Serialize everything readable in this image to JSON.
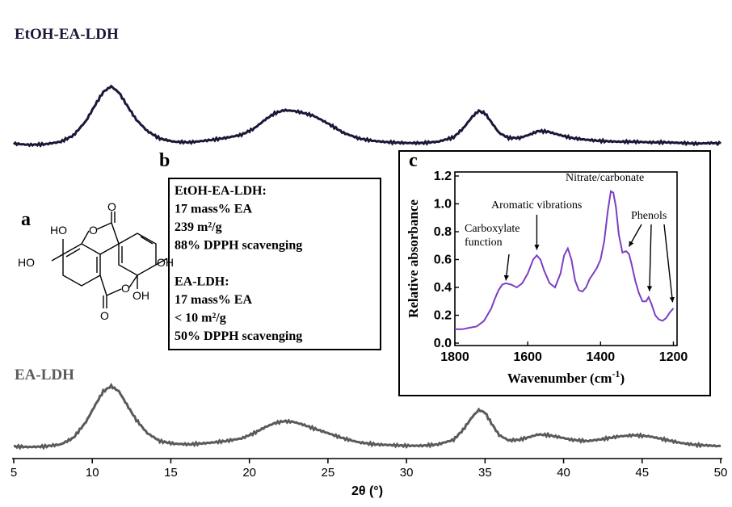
{
  "panel_labels": {
    "a": "a",
    "b": "b",
    "c": "c"
  },
  "chart_data": [
    {
      "type": "line",
      "xlabel": "2θ (°)",
      "ylabel": "",
      "xlim": [
        5,
        50
      ],
      "xticks": [
        5,
        10,
        15,
        20,
        25,
        30,
        35,
        40,
        45,
        50
      ],
      "yticks": [],
      "grid": false,
      "series": [
        {
          "name": "EtOH-EA-LDH",
          "color": "#1b1738",
          "x": [
            5,
            6,
            7,
            8,
            8.8,
            9.6,
            10.2,
            10.7,
            11.2,
            11.7,
            12.2,
            12.8,
            13.5,
            14.3,
            15.2,
            16.2,
            17.3,
            18.5,
            19.5,
            20.3,
            21,
            21.6,
            22.2,
            22.8,
            23.4,
            24.1,
            25,
            26,
            27,
            28,
            29,
            30,
            31,
            32,
            33,
            33.6,
            34.2,
            34.6,
            35,
            35.4,
            35.9,
            36.5,
            37.2,
            37.8,
            38.4,
            39,
            39.7,
            40.5,
            41.5,
            42.5,
            43.5,
            44.5,
            45.5,
            46.5,
            47.5,
            48.5,
            49.5,
            50
          ],
          "y": [
            0.04,
            0.02,
            0.03,
            0.07,
            0.17,
            0.4,
            0.66,
            0.86,
            0.95,
            0.85,
            0.65,
            0.42,
            0.24,
            0.12,
            0.07,
            0.06,
            0.09,
            0.13,
            0.18,
            0.28,
            0.42,
            0.52,
            0.57,
            0.56,
            0.53,
            0.48,
            0.36,
            0.21,
            0.12,
            0.08,
            0.06,
            0.05,
            0.05,
            0.07,
            0.14,
            0.28,
            0.47,
            0.56,
            0.52,
            0.38,
            0.21,
            0.13,
            0.13,
            0.18,
            0.24,
            0.23,
            0.18,
            0.13,
            0.1,
            0.08,
            0.07,
            0.07,
            0.06,
            0.06,
            0.05,
            0.04,
            0.05,
            0.04
          ]
        },
        {
          "name": "EA-LDH",
          "color": "#5a5a5a",
          "x": [
            5,
            6,
            7,
            8,
            8.8,
            9.6,
            10.2,
            10.7,
            11.2,
            11.7,
            12.2,
            12.8,
            13.5,
            14.3,
            15.2,
            16.2,
            17.3,
            18.5,
            19.5,
            20.3,
            21,
            21.6,
            22.2,
            22.8,
            23.4,
            24.1,
            25,
            26,
            27,
            28,
            29,
            30,
            31,
            32,
            33,
            33.6,
            34.2,
            34.6,
            35,
            35.4,
            35.9,
            36.5,
            37.2,
            37.8,
            38.4,
            39,
            39.7,
            40.5,
            41.5,
            42.5,
            43.5,
            44.5,
            45.5,
            46.5,
            47.5,
            48.5,
            49.5,
            50
          ],
          "y": [
            0.05,
            0.04,
            0.05,
            0.08,
            0.18,
            0.42,
            0.68,
            0.88,
            0.96,
            0.88,
            0.68,
            0.45,
            0.25,
            0.13,
            0.09,
            0.08,
            0.1,
            0.13,
            0.17,
            0.25,
            0.34,
            0.4,
            0.43,
            0.42,
            0.38,
            0.32,
            0.25,
            0.17,
            0.11,
            0.08,
            0.07,
            0.06,
            0.06,
            0.08,
            0.15,
            0.3,
            0.5,
            0.6,
            0.56,
            0.4,
            0.22,
            0.14,
            0.15,
            0.19,
            0.23,
            0.22,
            0.19,
            0.15,
            0.13,
            0.16,
            0.2,
            0.22,
            0.2,
            0.15,
            0.1,
            0.07,
            0.06,
            0.05
          ]
        }
      ]
    },
    {
      "type": "line",
      "xlabel": "Wavenumber (cm",
      "xlabel_superscript": "-1",
      "xlabel_suffix": ")",
      "ylabel": "Relative absorbance",
      "xlim": [
        1800,
        1190
      ],
      "ylim": [
        0,
        1.2
      ],
      "xticks": [
        1800,
        1600,
        1400,
        1200
      ],
      "yticks": [
        0.0,
        0.2,
        0.4,
        0.6,
        0.8,
        1.0,
        1.2
      ],
      "ytick_labels": [
        "0.0",
        "0.2",
        "0.4",
        "0.6",
        "0.8",
        "1.0",
        "1.2"
      ],
      "grid": false,
      "series": [
        {
          "name": "",
          "color": "#7b3fc4",
          "x": [
            1800,
            1780,
            1760,
            1740,
            1720,
            1700,
            1690,
            1680,
            1670,
            1660,
            1645,
            1630,
            1615,
            1600,
            1585,
            1575,
            1565,
            1555,
            1540,
            1525,
            1510,
            1500,
            1490,
            1480,
            1470,
            1460,
            1450,
            1440,
            1430,
            1420,
            1410,
            1400,
            1390,
            1380,
            1372,
            1365,
            1358,
            1350,
            1340,
            1330,
            1322,
            1315,
            1305,
            1295,
            1285,
            1275,
            1268,
            1260,
            1250,
            1240,
            1230,
            1220,
            1210,
            1200
          ],
          "y": [
            0.1,
            0.1,
            0.11,
            0.12,
            0.16,
            0.25,
            0.32,
            0.38,
            0.42,
            0.43,
            0.42,
            0.4,
            0.43,
            0.5,
            0.6,
            0.63,
            0.6,
            0.52,
            0.43,
            0.4,
            0.5,
            0.63,
            0.68,
            0.6,
            0.45,
            0.38,
            0.37,
            0.4,
            0.46,
            0.5,
            0.54,
            0.6,
            0.73,
            0.95,
            1.09,
            1.08,
            0.98,
            0.78,
            0.65,
            0.66,
            0.64,
            0.57,
            0.45,
            0.36,
            0.3,
            0.3,
            0.33,
            0.28,
            0.2,
            0.17,
            0.16,
            0.18,
            0.22,
            0.25
          ]
        }
      ],
      "annotations": [
        {
          "id": "carboxylate",
          "lines": [
            "Carboxylate",
            "function"
          ],
          "x": 1660,
          "y": 0.45
        },
        {
          "id": "aromatic",
          "lines": [
            "Aromatic vibrations"
          ],
          "x": 1575,
          "y": 0.67
        },
        {
          "id": "nitrate",
          "lines": [
            "Nitrate/carbonate"
          ],
          "x": 1365,
          "y": 1.12
        },
        {
          "id": "phenols",
          "lines": [
            "Phenols"
          ],
          "x": [
            1322,
            1268,
            1200
          ],
          "y": [
            0.67,
            0.35,
            0.27
          ]
        }
      ]
    }
  ],
  "infobox": {
    "lines": [
      "EtOH-EA-LDH:",
      "17 mass% EA",
      "239 m²/g",
      "88% DPPH scavenging",
      "",
      "EA-LDH:",
      "17 mass% EA",
      "< 10 m²/g",
      "50% DPPH scavenging"
    ]
  },
  "molecule": {
    "labels": [
      "HO",
      "HO",
      "OH",
      "OH",
      "O",
      "O",
      "O",
      "O"
    ]
  },
  "colors": {
    "etoh_series": "#1b1738",
    "ea_series": "#5a5a5a",
    "ir_series": "#7b3fc4",
    "frame": "#000000"
  }
}
